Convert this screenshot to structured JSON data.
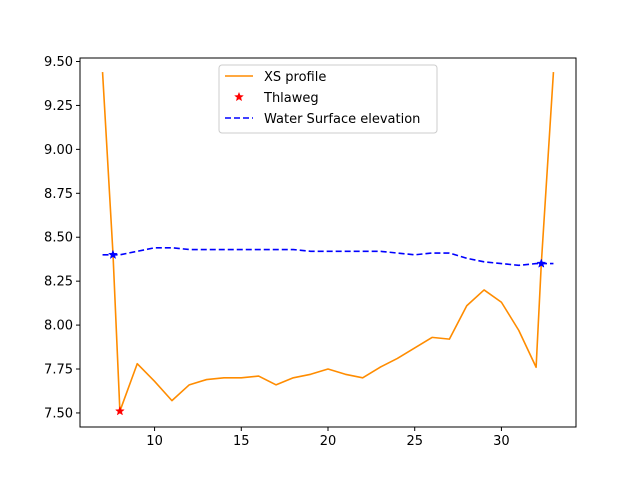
{
  "chart_data": {
    "type": "line",
    "title": "",
    "xlabel": "",
    "ylabel": "",
    "xlim": [
      5.7,
      34.3
    ],
    "ylim": [
      7.42,
      9.52
    ],
    "grid": false,
    "legend_position": "top-center",
    "xticks": [
      10,
      15,
      20,
      25,
      30
    ],
    "yticks": [
      7.5,
      7.75,
      8.0,
      8.25,
      8.5,
      8.75,
      9.0,
      9.25,
      9.5
    ],
    "xtick_labels": [
      "10",
      "15",
      "20",
      "25",
      "30"
    ],
    "ytick_labels": [
      "7.50",
      "7.75",
      "8.00",
      "8.25",
      "8.50",
      "8.75",
      "9.00",
      "9.25",
      "9.50"
    ],
    "series": [
      {
        "name": "XS profile",
        "style": "solid",
        "marker": "",
        "color": "#ff8c00",
        "x": [
          7,
          7.6,
          8,
          9,
          10,
          11,
          12,
          13,
          14,
          15,
          16,
          17,
          18,
          19,
          20,
          21,
          22,
          23,
          24,
          25,
          26,
          27,
          28,
          29,
          30,
          31,
          32,
          32.3,
          33
        ],
        "y": [
          9.44,
          8.41,
          7.51,
          7.78,
          7.68,
          7.57,
          7.66,
          7.69,
          7.7,
          7.7,
          7.71,
          7.66,
          7.7,
          7.72,
          7.75,
          7.72,
          7.7,
          7.76,
          7.81,
          7.87,
          7.93,
          7.92,
          8.11,
          8.2,
          8.13,
          7.97,
          7.76,
          8.35,
          9.44
        ]
      },
      {
        "name": "Thlaweg",
        "style": "none",
        "marker": "star",
        "color": "#ff0000",
        "x": [
          8
        ],
        "y": [
          7.51
        ]
      },
      {
        "name": "Water Surface elevation",
        "style": "dashed",
        "marker": "",
        "color": "#0000ff",
        "x": [
          7,
          8,
          9,
          10,
          11,
          12,
          13,
          14,
          15,
          16,
          17,
          18,
          19,
          20,
          21,
          22,
          23,
          24,
          25,
          26,
          27,
          28,
          29,
          30,
          31,
          32,
          33
        ],
        "y": [
          8.4,
          8.4,
          8.42,
          8.44,
          8.44,
          8.43,
          8.43,
          8.43,
          8.43,
          8.43,
          8.43,
          8.43,
          8.42,
          8.42,
          8.42,
          8.42,
          8.42,
          8.41,
          8.4,
          8.41,
          8.41,
          8.38,
          8.36,
          8.35,
          8.34,
          8.35,
          8.35
        ]
      }
    ],
    "wse_end_markers": {
      "color": "#0000ff",
      "marker": "star",
      "x": [
        7.6,
        32.3
      ],
      "y": [
        8.4,
        8.35
      ]
    }
  }
}
